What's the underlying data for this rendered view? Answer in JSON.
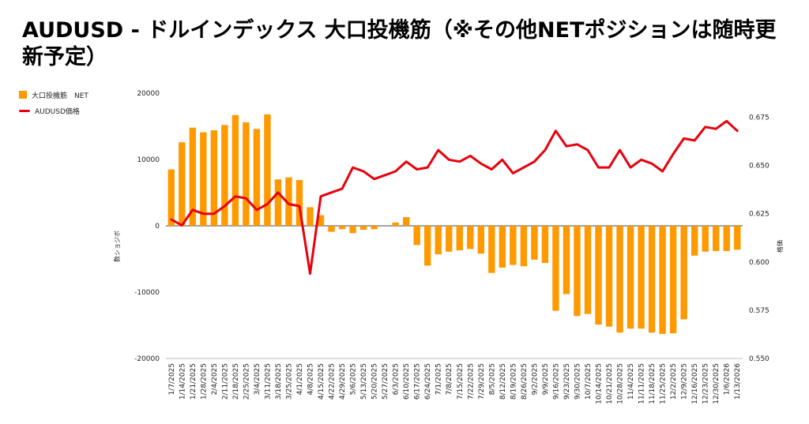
{
  "title": "AUDUSD - ドルインデックス 大口投機筋（※その他NETポジションは随時更新予定）",
  "legend": {
    "bar_label": "大口投機筋　NET",
    "line_label": "AUDUSD価格"
  },
  "colors": {
    "bar": "#ff9900",
    "line": "#e8000b"
  },
  "chart_data": {
    "type": "bar+line",
    "title": "AUDUSD - ドルインデックス 大口投機筋（※その他NETポジションは随時更新予定）",
    "ylabel_left": "数ショジボ",
    "ylabel_right": "格価",
    "left_axis": {
      "min": -20000,
      "max": 20000,
      "ticks": [
        20000,
        10000,
        0,
        -10000,
        -20000
      ]
    },
    "right_axis": {
      "min": 0.55,
      "max": 0.6875,
      "ticks": [
        0.675,
        0.65,
        0.625,
        0.6,
        0.575,
        0.55
      ],
      "tick_labels": [
        "0.675",
        "0.650",
        "0.625",
        "0.600",
        "0.575",
        "0.550"
      ]
    },
    "categories": [
      "1/7/2025",
      "1/14/2025",
      "1/21/2025",
      "1/28/2025",
      "2/4/2025",
      "2/11/2025",
      "2/18/2025",
      "2/25/2025",
      "3/4/2025",
      "3/11/2025",
      "3/18/2025",
      "3/25/2025",
      "4/1/2025",
      "4/8/2025",
      "4/15/2025",
      "4/22/2025",
      "4/29/2025",
      "5/6/2025",
      "5/13/2025",
      "5/20/2025",
      "5/27/2025",
      "6/3/2025",
      "6/10/2025",
      "6/17/2025",
      "6/24/2025",
      "7/1/2025",
      "7/8/2025",
      "7/15/2025",
      "7/22/2025",
      "7/29/2025",
      "8/5/2025",
      "8/12/2025",
      "8/19/2025",
      "8/26/2025",
      "9/2/2025",
      "9/9/2025",
      "9/16/2025",
      "9/23/2025",
      "9/30/2025",
      "10/7/2025",
      "10/14/2025",
      "10/21/2025",
      "10/28/2025",
      "11/4/2025",
      "11/11/2025",
      "11/18/2025",
      "11/25/2025",
      "12/2/2025",
      "12/9/2025",
      "12/16/2025",
      "12/23/2025",
      "12/30/2025",
      "1/6/2026",
      "1/13/2026"
    ],
    "x_tick_labels": [
      "1/7/2025",
      "1/14/2025",
      "1/21/2025",
      "1/28/2025",
      "2/4/2025",
      "2/11/2025",
      "2/18/2025",
      "2/25/2025",
      "3/4/2025",
      "3/11/2025",
      "3/18/2025",
      "3/25/2025",
      "4/1/2025",
      "4/8/2025",
      "4/15/2025",
      "4/22/2025",
      "4/29/2025",
      "5/6/2025",
      "5/13/2025",
      "5/20/2025",
      "5/27/2025",
      "6/3/2025",
      "6/10/2025",
      "6/17/2025",
      "6/24/2025",
      "7/1/2025",
      "7/8/2025",
      "7/15/2025",
      "7/22/2025",
      "7/29/2025",
      "8/5/2025",
      "8/12/2025",
      "8/19/2025",
      "8/26/2025",
      "9/2/2025",
      "9/9/2025",
      "9/16/2025",
      "9/23/2025",
      "9/30/2025",
      "10/7/2025",
      "10/14/2025",
      "10/21/2025",
      "10/28/2025",
      "11/4/2025",
      "11/11/2025",
      "11/18/2025",
      "11/25/2025",
      "12/2/2025",
      "12/9/2025",
      "12/16/2025",
      "12/23/2025",
      "12/30/2025",
      "1/6/2026",
      "1/13/2026"
    ],
    "series": [
      {
        "name": "大口投機筋　NET",
        "type": "bar",
        "axis": "left",
        "values": [
          8500,
          12600,
          14800,
          14100,
          14400,
          15200,
          16700,
          15600,
          14600,
          16800,
          7000,
          7300,
          6900,
          2800,
          1600,
          -900,
          -500,
          -1100,
          -600,
          -500,
          0,
          500,
          1300,
          -2900,
          -6000,
          -4300,
          -3900,
          -3700,
          -3500,
          -4200,
          -7100,
          -6300,
          -5900,
          -6100,
          -5100,
          -5600,
          -12800,
          -10300,
          -13600,
          -13300,
          -14900,
          -15200,
          -16100,
          -15500,
          -15500,
          -16100,
          -16300,
          -16200,
          -14100,
          -4500,
          -3900,
          -3800,
          -3800,
          -3600
        ]
      },
      {
        "name": "AUDUSD価格",
        "type": "line",
        "axis": "right",
        "values": [
          0.622,
          0.619,
          0.627,
          0.625,
          0.625,
          0.629,
          0.634,
          0.633,
          0.627,
          0.63,
          0.636,
          0.63,
          0.629,
          0.594,
          0.634,
          0.636,
          0.638,
          0.649,
          0.647,
          0.643,
          0.645,
          0.647,
          0.652,
          0.648,
          0.649,
          0.658,
          0.653,
          0.652,
          0.655,
          0.651,
          0.648,
          0.653,
          0.646,
          0.649,
          0.652,
          0.658,
          0.668,
          0.66,
          0.661,
          0.658,
          0.649,
          0.649,
          0.658,
          0.649,
          0.653,
          0.651,
          0.647,
          0.656,
          0.664,
          0.663,
          0.67,
          0.669,
          0.673,
          0.668
        ]
      }
    ]
  }
}
